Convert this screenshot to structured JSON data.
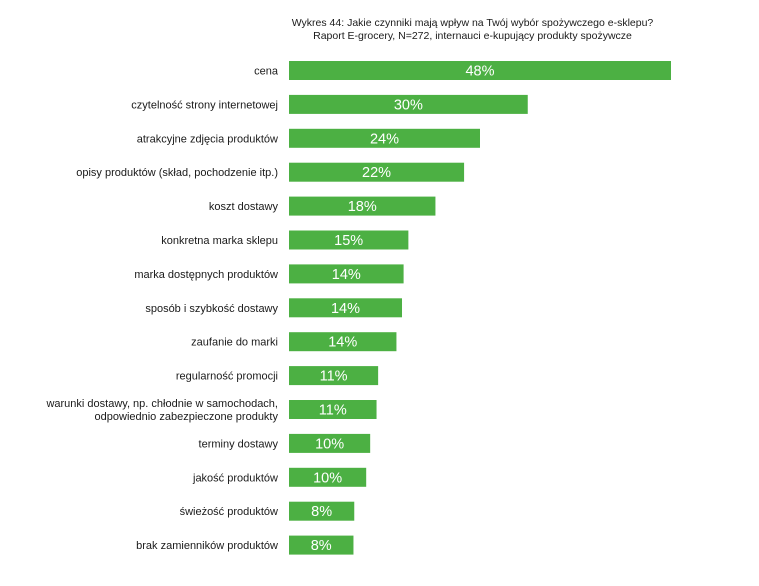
{
  "chart_data": {
    "type": "bar",
    "orientation": "horizontal",
    "title": "Wykres 44: Jakie czynniki mają wpływ na Twój wybór spożywczego e-sklepu?",
    "subtitle": "Raport E-grocery, N=272, internauci e-kupujący produkty spożywcze",
    "categories": [
      [
        "cena"
      ],
      [
        "czytelność strony internetowej"
      ],
      [
        "atrakcyjne zdjęcia produktów"
      ],
      [
        "opisy produktów (skład, pochodzenie itp.)"
      ],
      [
        "koszt dostawy"
      ],
      [
        "konkretna marka sklepu"
      ],
      [
        "marka dostępnych produktów"
      ],
      [
        "sposób i szybkość dostawy"
      ],
      [
        "zaufanie do marki"
      ],
      [
        "regularność promocji"
      ],
      [
        "warunki dostawy, np. chłodnie w samochodach,",
        "odpowiednio zabezpieczone produkty"
      ],
      [
        "terminy dostawy"
      ],
      [
        "jakość produktów"
      ],
      [
        "świeżość produktów"
      ],
      [
        "brak zamienników produktów"
      ]
    ],
    "values": [
      48,
      30,
      24,
      22,
      18,
      15,
      14,
      14,
      14,
      11,
      11,
      10,
      10,
      8,
      8
    ],
    "value_labels": [
      "48%",
      "30%",
      "24%",
      "22%",
      "18%",
      "15%",
      "14%",
      "14%",
      "14%",
      "11%",
      "11%",
      "10%",
      "10%",
      "8%",
      "8%"
    ],
    "bar_widths_relative": [
      48,
      30,
      24,
      22,
      18.4,
      15,
      14.4,
      14.2,
      13.5,
      11.2,
      11,
      10.2,
      9.7,
      8.2,
      8.1
    ],
    "xlim": [
      0,
      48
    ],
    "grid": false,
    "legend": "none",
    "bar_color": "#4cb043",
    "value_label_color": "#ffffff"
  }
}
